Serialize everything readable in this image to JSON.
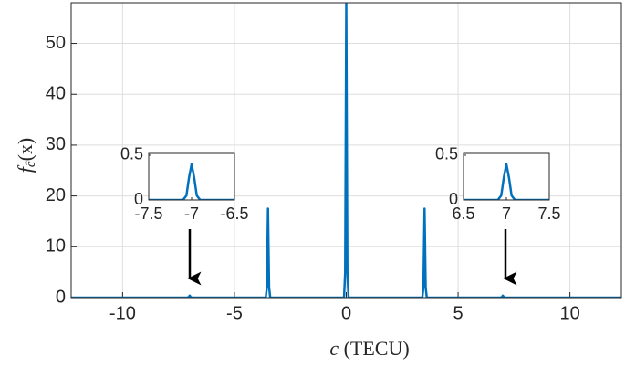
{
  "chart_data": [
    {
      "type": "line",
      "xlabel": {
        "var": "c",
        "unit": "(TECU)"
      },
      "ylabel": {
        "base": "f",
        "sub": "ĉ",
        "arg": "(x)"
      },
      "xlim": [
        -12.3,
        12.3
      ],
      "ylim": [
        0,
        58
      ],
      "xticks": [
        -10,
        -5,
        0,
        5,
        10
      ],
      "yticks": [
        0,
        10,
        20,
        30,
        40,
        50
      ],
      "grid": true,
      "series": [
        {
          "color": "#0072bd",
          "x": [
            -12.3,
            -7.1,
            -7.05,
            -7,
            -6.95,
            -6.9,
            -3.6,
            -3.55,
            -3.5,
            -3.45,
            -3.4,
            -0.1,
            -0.05,
            0,
            0.05,
            0.1,
            3.4,
            3.45,
            3.5,
            3.55,
            3.6,
            6.9,
            6.95,
            7,
            7.05,
            7.1,
            12.3
          ],
          "values": [
            0,
            0,
            0.1,
            0.4,
            0.1,
            0,
            0,
            2,
            17.5,
            2,
            0,
            0,
            5,
            58,
            5,
            0,
            0,
            2,
            17.5,
            2,
            0,
            0,
            0.1,
            0.4,
            0.1,
            0,
            0
          ]
        }
      ]
    },
    {
      "type": "line",
      "xlim": [
        -7.5,
        -6.5
      ],
      "ylim": [
        0,
        0.52
      ],
      "xticks": [
        -7.5,
        -7,
        -6.5
      ],
      "yticks": [
        0,
        0.5
      ],
      "grid": false,
      "series": [
        {
          "color": "#0072bd",
          "x": [
            -7.5,
            -7.1,
            -7.06,
            -7.03,
            -7,
            -6.97,
            -6.94,
            -6.9,
            -6.5
          ],
          "values": [
            0,
            0,
            0.05,
            0.25,
            0.4,
            0.25,
            0.05,
            0,
            0
          ]
        }
      ]
    },
    {
      "type": "line",
      "xlim": [
        6.5,
        7.5
      ],
      "ylim": [
        0,
        0.52
      ],
      "xticks": [
        6.5,
        7,
        7.5
      ],
      "yticks": [
        0,
        0.5
      ],
      "grid": false,
      "series": [
        {
          "color": "#0072bd",
          "x": [
            6.5,
            6.9,
            6.94,
            6.97,
            7,
            7.03,
            7.06,
            7.1,
            7.5
          ],
          "values": [
            0,
            0,
            0.05,
            0.25,
            0.4,
            0.25,
            0.05,
            0,
            0
          ]
        }
      ]
    }
  ]
}
